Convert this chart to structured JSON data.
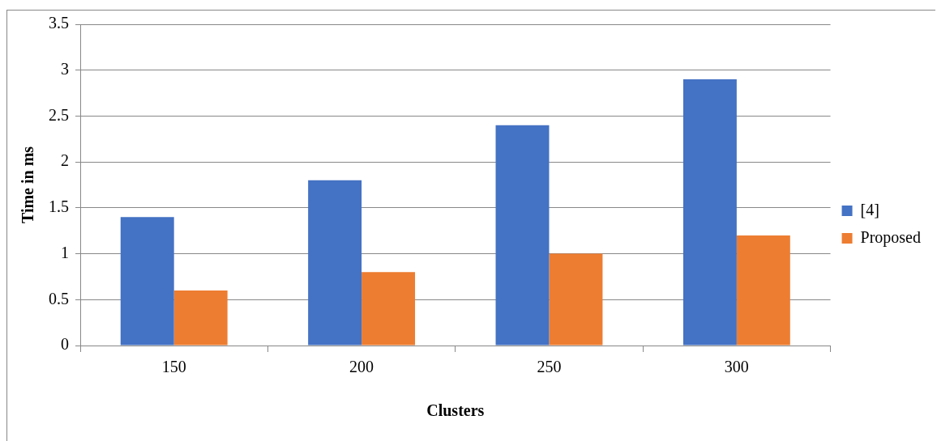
{
  "chart_data": {
    "type": "bar",
    "xlabel": "Clusters",
    "ylabel": "Time in ms",
    "categories": [
      "150",
      "200",
      "250",
      "300"
    ],
    "series": [
      {
        "name": "[4]",
        "color": "#4472c4",
        "values": [
          1.4,
          1.8,
          2.4,
          2.9
        ]
      },
      {
        "name": "Proposed",
        "color": "#ed7d31",
        "values": [
          0.6,
          0.8,
          1.0,
          1.2
        ]
      }
    ],
    "ylim": [
      0,
      3.5
    ],
    "yticks": [
      0,
      0.5,
      1,
      1.5,
      2,
      2.5,
      3,
      3.5
    ],
    "grid": "y",
    "legend": "right"
  }
}
